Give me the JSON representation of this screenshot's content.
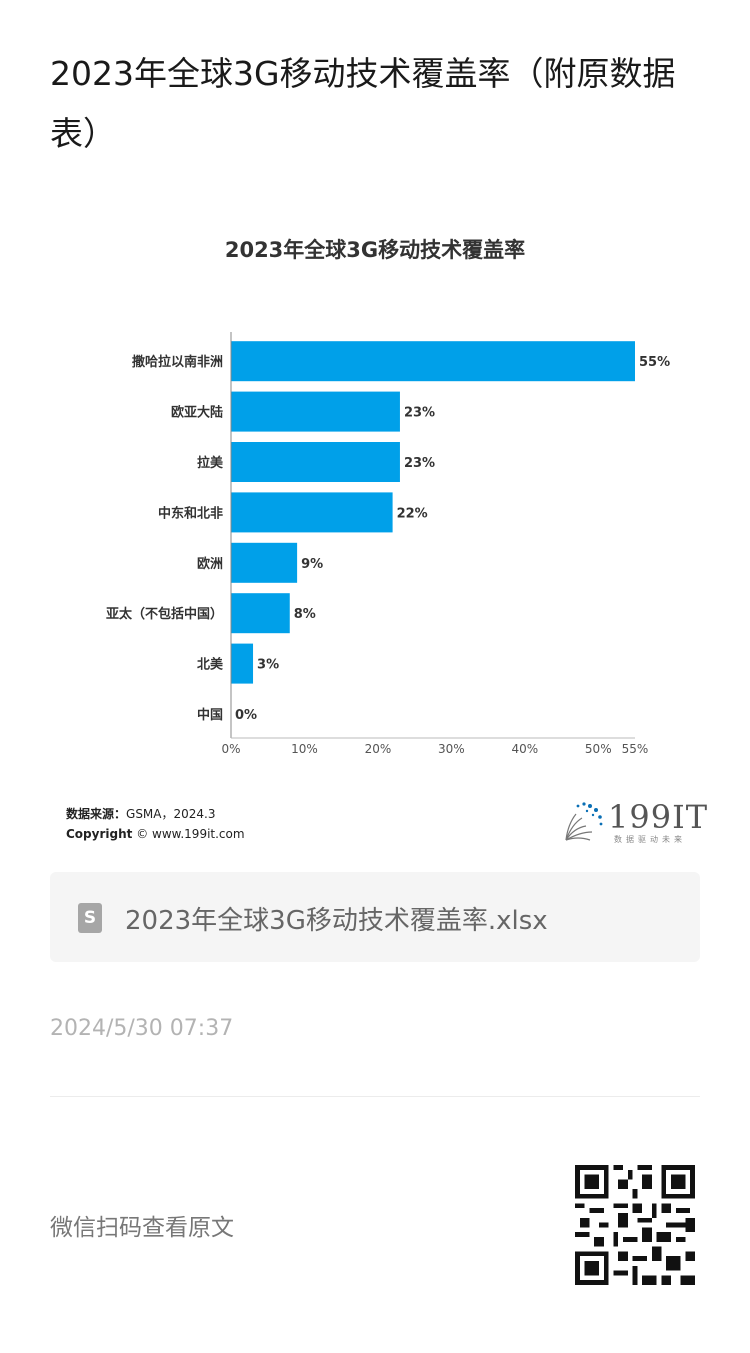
{
  "page": {
    "title": "2023年全球3G移动技术覆盖率（附原数据表）"
  },
  "chart_data": {
    "type": "bar",
    "orientation": "horizontal",
    "title": "2023年全球3G移动技术覆盖率",
    "categories": [
      "撒哈拉以南非洲",
      "欧亚大陆",
      "拉美",
      "中东和北非",
      "欧洲",
      "亚太（不包括中国）",
      "北美",
      "中国"
    ],
    "values": [
      55,
      23,
      23,
      22,
      9,
      8,
      3,
      0
    ],
    "value_labels": [
      "55%",
      "23%",
      "23%",
      "22%",
      "9%",
      "8%",
      "3%",
      "0%"
    ],
    "x_ticks": [
      "0%",
      "10%",
      "20%",
      "30%",
      "40%",
      "50%",
      "55%"
    ],
    "x_tick_values": [
      0,
      10,
      20,
      30,
      40,
      50,
      55
    ],
    "xlim": [
      0,
      55
    ],
    "bar_color": "#00a0e9",
    "grid": false
  },
  "source": {
    "label": "数据来源：",
    "text": "GSMA，2024.3",
    "copyright_label": "Copyright",
    "copyright_text": "© www.199it.com"
  },
  "logo": {
    "text": "199IT",
    "subtitle": "数据驱动未来"
  },
  "attachment": {
    "icon": "spreadsheet-file-icon",
    "icon_letter": "S",
    "filename": "2023年全球3G移动技术覆盖率.xlsx"
  },
  "meta": {
    "date": "2024/5/30 07:37"
  },
  "footer": {
    "scan_text": "微信扫码查看原文",
    "qr_icon": "qr-code-icon"
  }
}
